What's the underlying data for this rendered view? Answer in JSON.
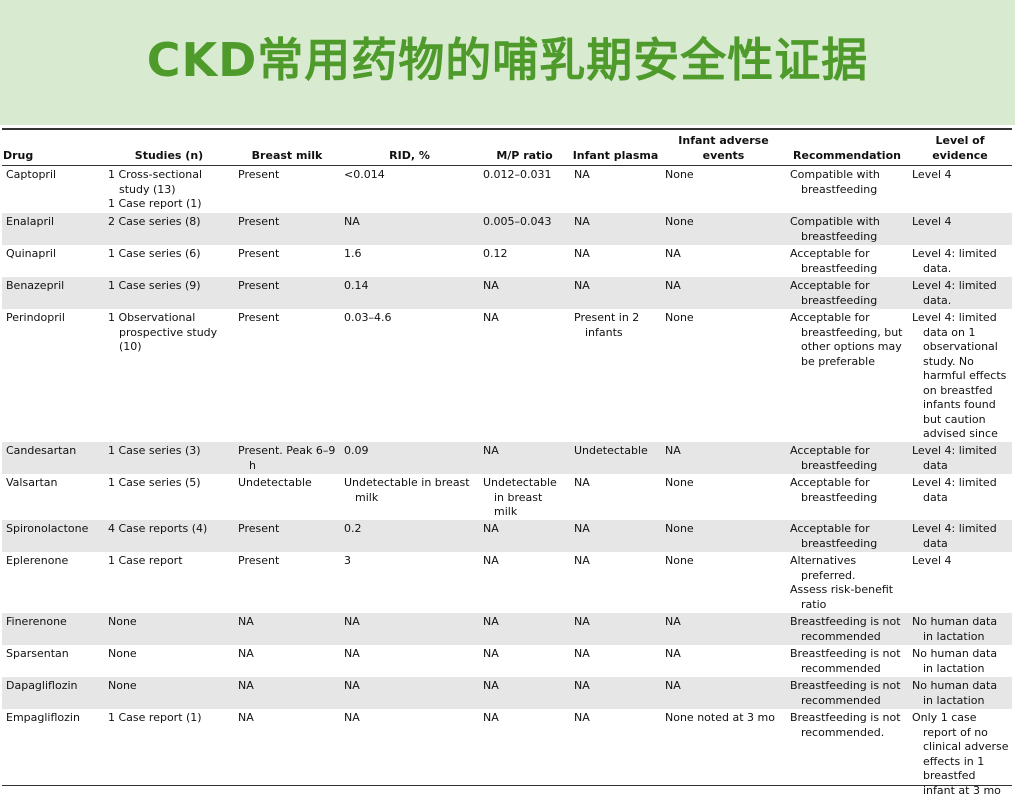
{
  "header": {
    "title": "CKD常用药物的哺乳期安全性证据"
  },
  "table": {
    "columns": [
      "Drug",
      "Studies (n)",
      "Breast milk",
      "RID, %",
      "M/P ratio",
      "Infant plasma",
      "Infant adverse events",
      "Recommendation",
      "Level of evidence"
    ],
    "rows": [
      [
        "Captopril",
        [
          "1 Cross-sectional study (13)",
          "1 Case report (1)"
        ],
        "Present",
        "<0.014",
        "0.012–0.031",
        "NA",
        "None",
        "Compatible with breastfeeding",
        "Level 4"
      ],
      [
        "Enalapril",
        "2 Case series (8)",
        "Present",
        "NA",
        "0.005–0.043",
        "NA",
        "None",
        "Compatible with breastfeeding",
        "Level 4"
      ],
      [
        "Quinapril",
        "1 Case series (6)",
        "Present",
        "1.6",
        "0.12",
        "NA",
        "NA",
        "Acceptable for breastfeeding",
        "Level 4: limited data."
      ],
      [
        "Benazepril",
        "1 Case series (9)",
        "Present",
        "0.14",
        "NA",
        "NA",
        "NA",
        "Acceptable for breastfeeding",
        "Level 4: limited data."
      ],
      [
        "Perindopril",
        "1 Observational prospective study (10)",
        "Present",
        "0.03–4.6",
        "NA",
        "Present in 2 infants",
        "None",
        "Acceptable for breastfeeding, but other options may be preferable",
        "Level 4: limited data on 1 observational study. No harmful effects on breastfed infants found but caution advised since"
      ],
      [
        "Candesartan",
        "1 Case series (3)",
        "Present. Peak 6–9 h",
        "0.09",
        "NA",
        "Undetectable",
        "NA",
        "Acceptable for breastfeeding",
        "Level 4: limited data"
      ],
      [
        "Valsartan",
        "1 Case series (5)",
        "Undetectable",
        "Undetectable in breast milk",
        "Undetectable in breast milk",
        "NA",
        "None",
        "Acceptable for breastfeeding",
        "Level 4: limited data"
      ],
      [
        "Spironolactone",
        "4 Case reports (4)",
        "Present",
        "0.2",
        "NA",
        "NA",
        "None",
        "Acceptable for breastfeeding",
        "Level 4: limited data"
      ],
      [
        "Eplerenone",
        "1 Case report",
        "Present",
        "3",
        "NA",
        "NA",
        "None",
        [
          "Alternatives preferred.",
          "Assess risk-benefit ratio"
        ],
        "Level 4"
      ],
      [
        "Finerenone",
        "None",
        "NA",
        "NA",
        "NA",
        "NA",
        "NA",
        "Breastfeeding is not recommended",
        "No human data in lactation"
      ],
      [
        "Sparsentan",
        "None",
        "NA",
        "NA",
        "NA",
        "NA",
        "NA",
        "Breastfeeding is not recommended",
        "No human data in lactation"
      ],
      [
        "Dapagliflozin",
        "None",
        "NA",
        "NA",
        "NA",
        "NA",
        "NA",
        "Breastfeeding is not recommended",
        "No human data in lactation"
      ],
      [
        "Empagliflozin",
        "1 Case report (1)",
        "NA",
        "NA",
        "NA",
        "NA",
        "None noted at 3 mo",
        "Breastfeeding is not recommended.",
        "Only 1 case report of no clinical adverse effects in 1 breastfed infant at 3 mo"
      ]
    ]
  }
}
